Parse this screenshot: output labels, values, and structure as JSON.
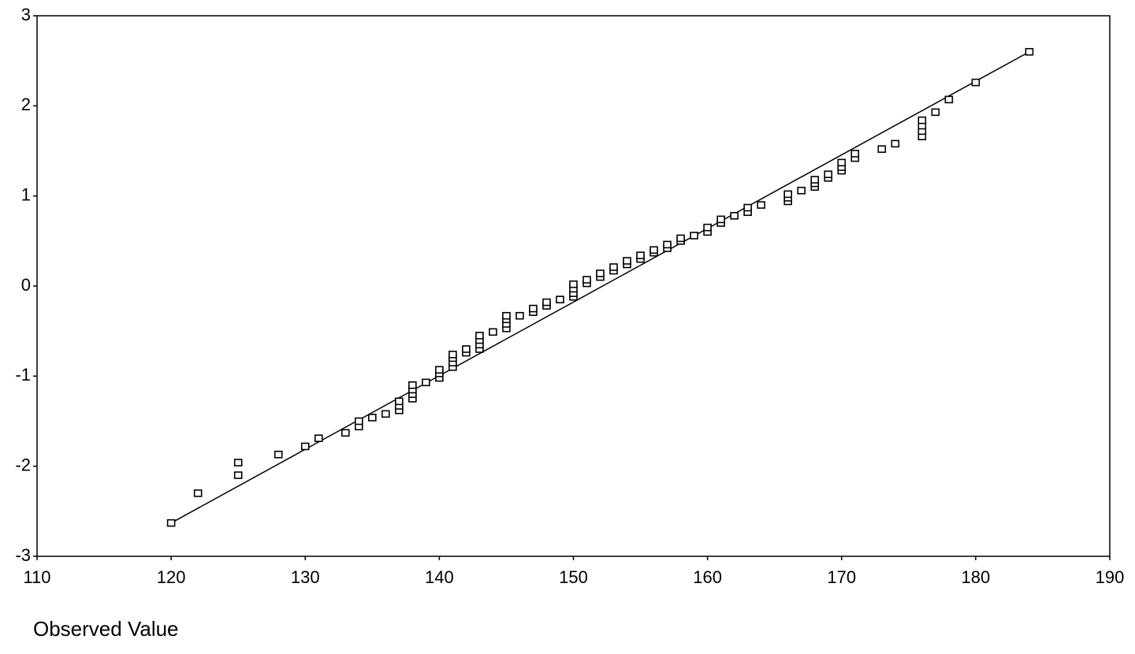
{
  "chart_data": {
    "type": "scatter",
    "x_label": "Observed Value",
    "x": [
      120,
      122,
      125,
      125,
      128,
      130,
      131,
      133,
      134,
      134,
      135,
      136,
      137,
      137,
      137,
      138,
      138,
      138,
      138,
      139,
      140,
      140,
      140,
      141,
      141,
      141,
      141,
      142,
      142,
      143,
      143,
      143,
      143,
      144,
      145,
      145,
      145,
      145,
      146,
      147,
      147,
      148,
      148,
      149,
      150,
      150,
      150,
      150,
      151,
      151,
      152,
      152,
      153,
      153,
      154,
      154,
      155,
      155,
      156,
      156,
      157,
      157,
      158,
      158,
      159,
      160,
      160,
      161,
      161,
      162,
      163,
      163,
      164,
      166,
      166,
      166,
      167,
      168,
      168,
      168,
      169,
      169,
      170,
      170,
      170,
      171,
      171,
      173,
      174,
      176,
      176,
      176,
      176,
      177,
      178,
      180,
      184
    ],
    "y": [
      -2.63,
      -2.3,
      -2.1,
      -1.96,
      -1.87,
      -1.78,
      -1.69,
      -1.63,
      -1.56,
      -1.5,
      -1.46,
      -1.42,
      -1.38,
      -1.33,
      -1.28,
      -1.25,
      -1.2,
      -1.15,
      -1.1,
      -1.07,
      -1.02,
      -0.97,
      -0.93,
      -0.9,
      -0.85,
      -0.8,
      -0.76,
      -0.74,
      -0.7,
      -0.7,
      -0.65,
      -0.6,
      -0.55,
      -0.51,
      -0.47,
      -0.42,
      -0.37,
      -0.33,
      -0.33,
      -0.29,
      -0.25,
      -0.22,
      -0.18,
      -0.15,
      -0.12,
      -0.08,
      -0.03,
      0.02,
      0.03,
      0.07,
      0.1,
      0.14,
      0.17,
      0.21,
      0.24,
      0.28,
      0.3,
      0.34,
      0.37,
      0.4,
      0.42,
      0.46,
      0.5,
      0.53,
      0.56,
      0.6,
      0.65,
      0.7,
      0.74,
      0.78,
      0.82,
      0.87,
      0.9,
      0.94,
      0.98,
      1.02,
      1.06,
      1.1,
      1.14,
      1.18,
      1.2,
      1.24,
      1.28,
      1.32,
      1.37,
      1.42,
      1.47,
      1.52,
      1.58,
      1.66,
      1.72,
      1.78,
      1.84,
      1.93,
      2.07,
      2.26,
      2.6
    ],
    "color": "#000000",
    "fit_line": {
      "x": [
        120,
        184
      ],
      "y": [
        -2.63,
        2.6
      ]
    },
    "xlim": [
      110,
      190
    ],
    "ylim": [
      -3,
      3
    ],
    "xticks": [
      110,
      120,
      130,
      140,
      150,
      160,
      170,
      180,
      190
    ],
    "yticks": [
      -3,
      -2,
      -1,
      0,
      1,
      2,
      3
    ]
  }
}
